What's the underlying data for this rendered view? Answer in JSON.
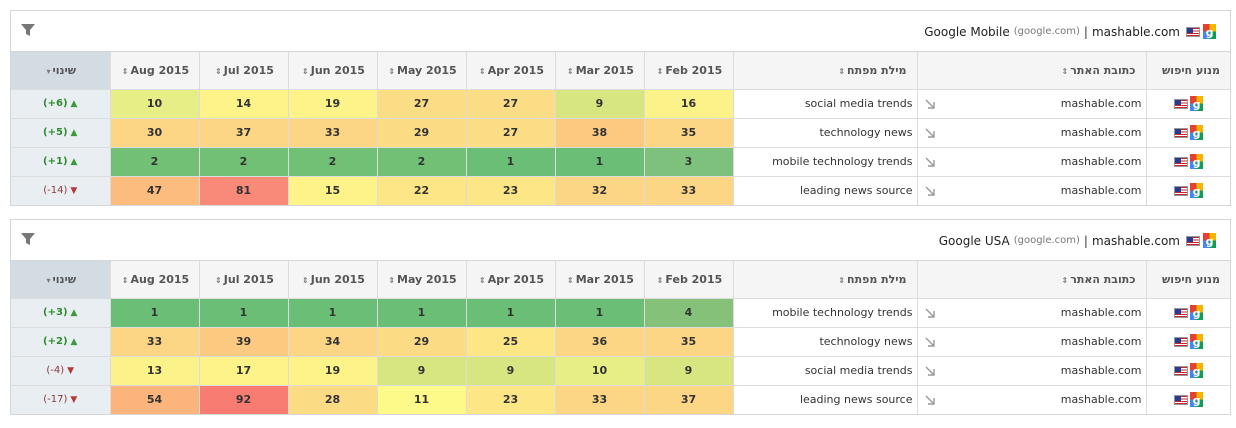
{
  "panels": [
    {
      "engine": "Google Mobile",
      "engine_domain": "(google.com)",
      "separator": "|",
      "site": "mashable.com",
      "headers": {
        "engine": "מנוע חיפוש",
        "site": "כתובת האתר",
        "keyword": "מילת מפתח",
        "change": "שינוי",
        "months": [
          "Feb 2015",
          "Mar 2015",
          "Apr 2015",
          "May 2015",
          "Jun 2015",
          "Jul 2015",
          "Aug 2015"
        ]
      },
      "rows": [
        {
          "site": "mashable.com",
          "keyword": "social media trends",
          "ranks": [
            16,
            9,
            27,
            27,
            19,
            14,
            10
          ],
          "colors": [
            "#fbf28a",
            "#d8e682",
            "#fbdd86",
            "#fbdd86",
            "#fdf388",
            "#fdf388",
            "#e7ee86"
          ],
          "change": "(+6)",
          "direction": "up"
        },
        {
          "site": "mashable.com",
          "keyword": "technology news",
          "ranks": [
            35,
            38,
            27,
            29,
            33,
            37,
            30
          ],
          "colors": [
            "#fcd585",
            "#fcc981",
            "#fbdd86",
            "#fcdb85",
            "#fcd585",
            "#fcd585",
            "#fcd585"
          ],
          "change": "(+5)",
          "direction": "up"
        },
        {
          "site": "mashable.com",
          "keyword": "mobile technology trends",
          "ranks": [
            3,
            1,
            1,
            2,
            2,
            2,
            2
          ],
          "colors": [
            "#7ec17c",
            "#6abe75",
            "#6abe75",
            "#72c076",
            "#72c076",
            "#72c076",
            "#72c076"
          ],
          "change": "(+1)",
          "direction": "up"
        },
        {
          "site": "mashable.com",
          "keyword": "leading news source",
          "ranks": [
            33,
            32,
            23,
            22,
            15,
            81,
            47
          ],
          "colors": [
            "#fcd585",
            "#fcd585",
            "#fce686",
            "#fce686",
            "#fdf388",
            "#f98a7a",
            "#fcbc7e"
          ],
          "change": "(-14)",
          "direction": "down"
        }
      ]
    },
    {
      "engine": "Google USA",
      "engine_domain": "(google.com)",
      "separator": "|",
      "site": "mashable.com",
      "headers": {
        "engine": "מנוע חיפוש",
        "site": "כתובת האתר",
        "keyword": "מילת מפתח",
        "change": "שינוי",
        "months": [
          "Feb 2015",
          "Mar 2015",
          "Apr 2015",
          "May 2015",
          "Jun 2015",
          "Jul 2015",
          "Aug 2015"
        ]
      },
      "rows": [
        {
          "site": "mashable.com",
          "keyword": "mobile technology trends",
          "ranks": [
            4,
            1,
            1,
            1,
            1,
            1,
            1
          ],
          "colors": [
            "#86c17a",
            "#6abe75",
            "#6abe75",
            "#6abe75",
            "#6abe75",
            "#6abe75",
            "#6abe75"
          ],
          "change": "(+3)",
          "direction": "up"
        },
        {
          "site": "mashable.com",
          "keyword": "technology news",
          "ranks": [
            35,
            36,
            25,
            29,
            34,
            39,
            33
          ],
          "colors": [
            "#fcd585",
            "#fcd585",
            "#fce686",
            "#fcdb85",
            "#fcd585",
            "#fcc981",
            "#fcd585"
          ],
          "change": "(+2)",
          "direction": "up"
        },
        {
          "site": "mashable.com",
          "keyword": "social media trends",
          "ranks": [
            9,
            10,
            9,
            9,
            19,
            17,
            13
          ],
          "colors": [
            "#d8e682",
            "#e7ee86",
            "#d8e682",
            "#d8e682",
            "#fdf388",
            "#fdf388",
            "#fbf28a"
          ],
          "change": "(-4)",
          "direction": "down"
        },
        {
          "site": "mashable.com",
          "keyword": "leading news source",
          "ranks": [
            37,
            33,
            23,
            11,
            28,
            92,
            54
          ],
          "colors": [
            "#fcd585",
            "#fcd585",
            "#fce686",
            "#fdfa8a",
            "#fcdb85",
            "#f87c72",
            "#fbb47b"
          ],
          "change": "(-17)",
          "direction": "down"
        }
      ]
    }
  ],
  "icons": {
    "filter": "filter-icon",
    "flag": "us-flag-icon",
    "google": "google-icon",
    "link": "external-link-icon",
    "up": "arrow-up-icon",
    "down": "arrow-down-icon",
    "sort": "sort-icon"
  }
}
